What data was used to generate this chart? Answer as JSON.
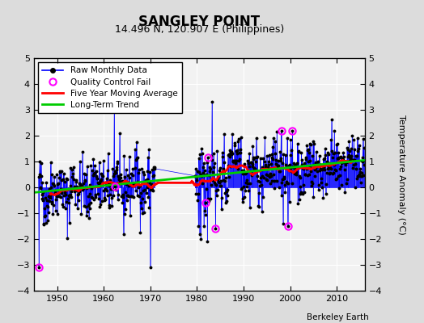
{
  "title": "SANGLEY POINT",
  "subtitle": "14.496 N, 120.907 E (Philippines)",
  "ylabel": "Temperature Anomaly (°C)",
  "credit": "Berkeley Earth",
  "ylim": [
    -4,
    5
  ],
  "xlim": [
    1945,
    2016
  ],
  "xticks": [
    1950,
    1960,
    1970,
    1980,
    1990,
    2000,
    2010
  ],
  "yticks": [
    -4,
    -3,
    -2,
    -1,
    0,
    1,
    2,
    3,
    4,
    5
  ],
  "bg_color": "#dcdcdc",
  "plot_bg_color": "#f2f2f2",
  "line_color_raw": "#0000ff",
  "line_color_ma": "#ff0000",
  "line_color_trend": "#00cc00",
  "qc_fail_color": "#ff00ff",
  "dot_color": "#000000",
  "seed": 42,
  "figsize": [
    5.24,
    4.0
  ],
  "dpi": 100
}
